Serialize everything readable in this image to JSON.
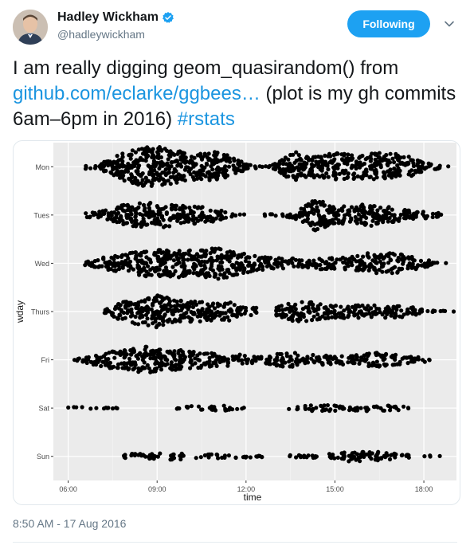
{
  "author": {
    "name": "Hadley Wickham",
    "handle": "@hadleywickham",
    "avatar_icon": "user-avatar-icon",
    "verified_icon": "verified-badge-icon"
  },
  "follow_button": {
    "label": "Following"
  },
  "menu": {
    "icon": "chevron-down-icon"
  },
  "tweet": {
    "text_before": "I am really digging geom_quasirandom() from ",
    "link_text": "github.com/eclarke/ggbees…",
    "text_middle": " (plot is my gh commits 6am–6pm in 2016) ",
    "hashtag": "#rstats",
    "timestamp": "8:50 AM - 17 Aug 2016"
  },
  "colors": {
    "accent": "#1da1f2",
    "link": "#1b95e0",
    "panel": "#ebebeb",
    "grid": "#ffffff",
    "point": "#000000"
  },
  "chart_data": {
    "type": "scatter",
    "xlabel": "time",
    "ylabel": "wday",
    "xlim": [
      5.5,
      19.1
    ],
    "x_ticks": [
      6,
      9,
      12,
      15,
      18
    ],
    "x_tick_labels": [
      "06:00",
      "09:00",
      "12:00",
      "15:00",
      "18:00"
    ],
    "categories": [
      "Mon",
      "Tues",
      "Wed",
      "Thurs",
      "Fri",
      "Sat",
      "Sun"
    ],
    "grid": true,
    "legend": "none",
    "series": [
      {
        "category": "Mon",
        "density": [
          [
            6.4,
            0.2
          ],
          [
            6.7,
            0.2
          ],
          [
            7.0,
            0.2
          ],
          [
            7.5,
            0.9
          ],
          [
            8.0,
            1.5
          ],
          [
            8.5,
            1.9
          ],
          [
            9.0,
            2.0
          ],
          [
            9.5,
            1.8
          ],
          [
            10.0,
            1.3
          ],
          [
            10.5,
            1.3
          ],
          [
            11.0,
            1.5
          ],
          [
            11.5,
            1.0
          ],
          [
            12.0,
            0.3
          ],
          [
            12.5,
            0.1
          ],
          [
            12.9,
            0.2
          ],
          [
            13.3,
            0.9
          ],
          [
            13.6,
            1.5
          ],
          [
            14.0,
            1.2
          ],
          [
            14.5,
            1.1
          ],
          [
            15.0,
            1.4
          ],
          [
            15.5,
            1.2
          ],
          [
            16.0,
            1.2
          ],
          [
            16.5,
            1.4
          ],
          [
            17.0,
            1.3
          ],
          [
            17.5,
            1.0
          ],
          [
            18.0,
            0.4
          ],
          [
            18.5,
            0.2
          ],
          [
            18.7,
            0.1
          ]
        ]
      },
      {
        "category": "Tues",
        "density": [
          [
            6.5,
            0.2
          ],
          [
            7.0,
            0.3
          ],
          [
            7.5,
            0.6
          ],
          [
            8.0,
            1.2
          ],
          [
            8.5,
            1.3
          ],
          [
            9.0,
            1.2
          ],
          [
            9.5,
            1.2
          ],
          [
            10.0,
            0.9
          ],
          [
            10.5,
            0.8
          ],
          [
            11.0,
            0.6
          ],
          [
            11.3,
            0.3
          ],
          [
            11.6,
            0.1
          ],
          [
            12.3,
            0.1
          ],
          [
            12.7,
            0.1
          ],
          [
            13.2,
            0.1
          ],
          [
            13.6,
            0.3
          ],
          [
            14.0,
            0.9
          ],
          [
            14.3,
            1.6
          ],
          [
            14.6,
            1.3
          ],
          [
            15.0,
            0.8
          ],
          [
            15.5,
            0.9
          ],
          [
            16.0,
            1.2
          ],
          [
            16.5,
            1.0
          ],
          [
            17.0,
            0.7
          ],
          [
            17.5,
            0.5
          ],
          [
            18.0,
            0.4
          ],
          [
            18.5,
            0.2
          ]
        ]
      },
      {
        "category": "Wed",
        "density": [
          [
            6.4,
            0.1
          ],
          [
            6.8,
            0.3
          ],
          [
            7.2,
            0.6
          ],
          [
            7.8,
            0.9
          ],
          [
            8.3,
            1.1
          ],
          [
            8.8,
            1.4
          ],
          [
            9.3,
            1.3
          ],
          [
            9.8,
            1.4
          ],
          [
            10.3,
            1.2
          ],
          [
            10.8,
            1.6
          ],
          [
            11.3,
            1.5
          ],
          [
            11.8,
            1.0
          ],
          [
            12.3,
            0.8
          ],
          [
            12.8,
            0.6
          ],
          [
            13.3,
            0.5
          ],
          [
            13.8,
            0.5
          ],
          [
            14.3,
            0.6
          ],
          [
            14.8,
            0.6
          ],
          [
            15.3,
            0.6
          ],
          [
            15.8,
            0.8
          ],
          [
            16.3,
            1.1
          ],
          [
            16.8,
            1.0
          ],
          [
            17.3,
            0.9
          ],
          [
            17.8,
            0.6
          ],
          [
            18.2,
            0.3
          ],
          [
            18.6,
            0.1
          ]
        ]
      },
      {
        "category": "Thurs",
        "density": [
          [
            7.2,
            0.1
          ],
          [
            7.6,
            0.7
          ],
          [
            8.0,
            1.1
          ],
          [
            8.5,
            1.3
          ],
          [
            9.0,
            1.6
          ],
          [
            9.5,
            1.3
          ],
          [
            10.0,
            1.0
          ],
          [
            10.5,
            1.1
          ],
          [
            11.0,
            0.9
          ],
          [
            11.5,
            0.9
          ],
          [
            11.8,
            0.4
          ],
          [
            13.0,
            0.5
          ],
          [
            13.5,
            0.9
          ],
          [
            14.0,
            1.0
          ],
          [
            14.5,
            0.8
          ],
          [
            15.0,
            0.6
          ],
          [
            15.5,
            0.8
          ],
          [
            16.0,
            0.6
          ],
          [
            16.5,
            0.6
          ],
          [
            17.0,
            0.6
          ],
          [
            17.5,
            0.5
          ],
          [
            18.0,
            0.2
          ],
          [
            18.4,
            0.1
          ],
          [
            19.0,
            0.05
          ]
        ]
      },
      {
        "category": "Fri",
        "density": [
          [
            6.2,
            0.2
          ],
          [
            6.6,
            0.3
          ],
          [
            7.1,
            0.7
          ],
          [
            7.6,
            0.9
          ],
          [
            8.1,
            1.1
          ],
          [
            8.6,
            1.3
          ],
          [
            9.1,
            1.1
          ],
          [
            9.6,
            1.0
          ],
          [
            10.1,
            0.9
          ],
          [
            10.6,
            0.8
          ],
          [
            11.1,
            0.6
          ],
          [
            11.6,
            0.6
          ],
          [
            12.1,
            0.4
          ],
          [
            12.6,
            0.3
          ],
          [
            13.1,
            0.7
          ],
          [
            13.6,
            0.7
          ],
          [
            14.1,
            0.5
          ],
          [
            14.6,
            0.5
          ],
          [
            15.1,
            0.5
          ],
          [
            15.6,
            0.4
          ],
          [
            16.1,
            0.7
          ],
          [
            16.6,
            0.7
          ],
          [
            17.1,
            0.5
          ],
          [
            17.6,
            0.3
          ],
          [
            18.1,
            0.2
          ]
        ]
      },
      {
        "category": "Sat",
        "density": [
          [
            5.9,
            0.1
          ],
          [
            6.4,
            0.1
          ],
          [
            7.2,
            0.05
          ],
          [
            9.6,
            0.2
          ],
          [
            10.4,
            0.2
          ],
          [
            10.8,
            0.2
          ],
          [
            11.2,
            0.3
          ],
          [
            11.6,
            0.1
          ],
          [
            13.4,
            0.1
          ],
          [
            13.8,
            0.2
          ],
          [
            14.3,
            0.3
          ],
          [
            14.8,
            0.3
          ],
          [
            15.4,
            0.2
          ],
          [
            16.0,
            0.3
          ],
          [
            16.6,
            0.3
          ],
          [
            17.0,
            0.2
          ],
          [
            17.4,
            0.2
          ]
        ]
      },
      {
        "category": "Sun",
        "density": [
          [
            7.8,
            0.2
          ],
          [
            8.2,
            0.3
          ],
          [
            8.6,
            0.2
          ],
          [
            9.3,
            0.4
          ],
          [
            10.3,
            0.2
          ],
          [
            10.9,
            0.2
          ],
          [
            11.6,
            0.2
          ],
          [
            12.2,
            0.1
          ],
          [
            13.4,
            0.2
          ],
          [
            13.9,
            0.1
          ],
          [
            14.8,
            0.3
          ],
          [
            15.3,
            0.5
          ],
          [
            15.8,
            0.5
          ],
          [
            16.3,
            0.5
          ],
          [
            16.7,
            0.4
          ],
          [
            17.2,
            0.2
          ],
          [
            17.9,
            0.1
          ],
          [
            18.4,
            0.1
          ]
        ]
      }
    ]
  }
}
